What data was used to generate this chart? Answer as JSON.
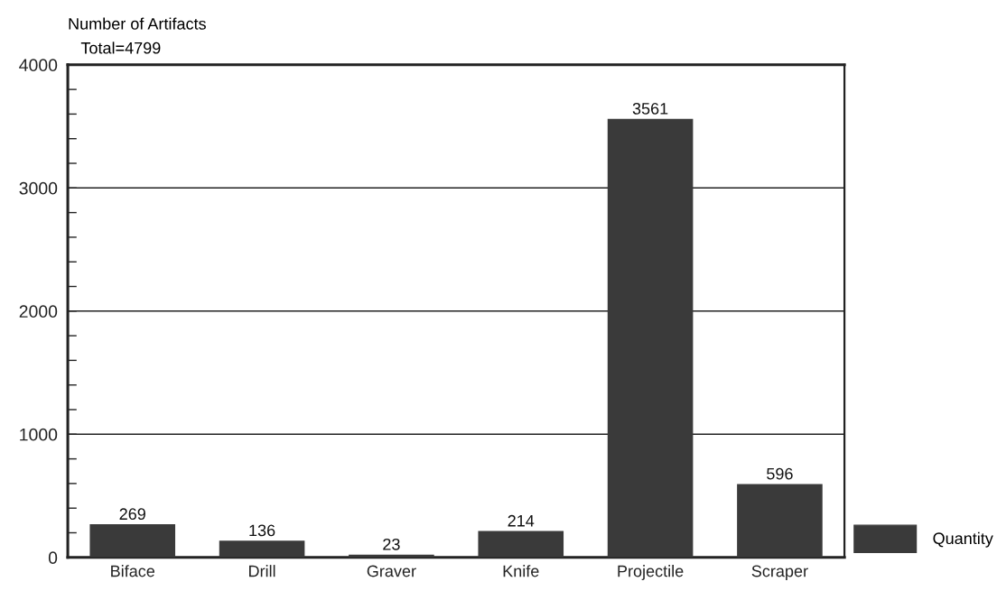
{
  "chart_data": {
    "type": "bar",
    "ylabel": "Number of Artifacts",
    "annotations": [
      "Total=4799"
    ],
    "categories": [
      "Biface",
      "Drill",
      "Graver",
      "Knife",
      "Projectile",
      "Scraper"
    ],
    "series": [
      {
        "name": "Quantity",
        "color": "#3a3a3a",
        "values": [
          269,
          136,
          23,
          214,
          3561,
          596
        ]
      }
    ],
    "ylim": [
      0,
      4000
    ],
    "yticks": [
      0,
      {
        "value": 200,
        "label": null
      },
      {
        "value": 400,
        "label": null
      },
      {
        "value": 600,
        "label": null
      },
      {
        "value": 800,
        "label": null
      },
      1000,
      {
        "value": 1200,
        "label": null
      },
      {
        "value": 1400,
        "label": null
      },
      {
        "value": 1600,
        "label": null
      },
      {
        "value": 1800,
        "label": null
      },
      2000,
      {
        "value": 2200,
        "label": null
      },
      {
        "value": 2400,
        "label": null
      },
      {
        "value": 2600,
        "label": null
      },
      {
        "value": 2800,
        "label": null
      },
      3000,
      {
        "value": 3200,
        "label": null
      },
      {
        "value": 3400,
        "label": null
      },
      {
        "value": 3600,
        "label": null
      },
      {
        "value": 3800,
        "label": null
      },
      4000
    ],
    "grid": "y",
    "legend": "bottom right",
    "data_labels": true
  }
}
